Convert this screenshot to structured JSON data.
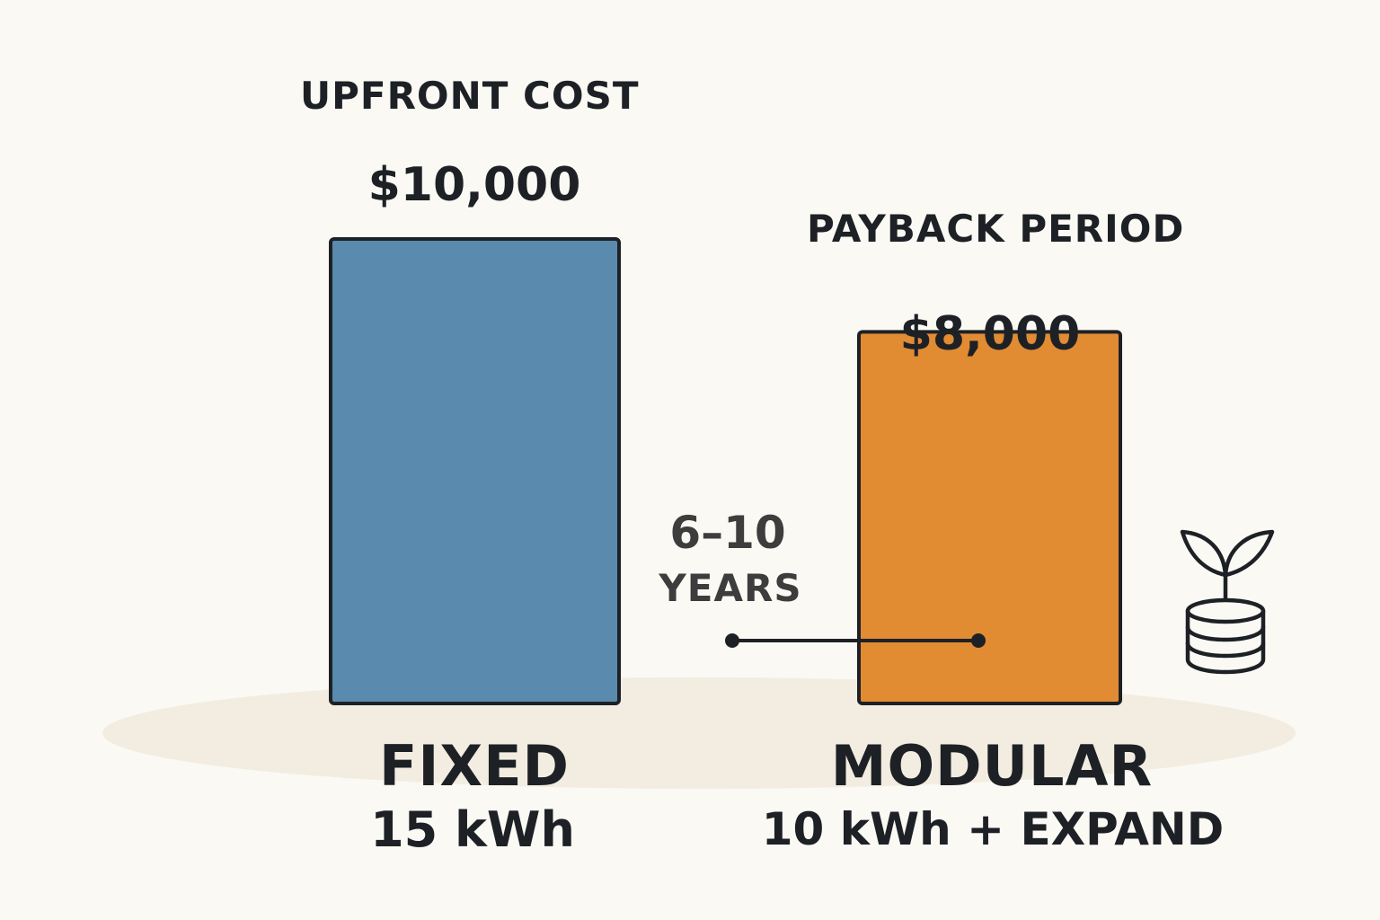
{
  "headings": {
    "upfront": "UPFRONT COST",
    "payback": "PAYBACK PERIOD"
  },
  "payback": {
    "value": "6–10",
    "unit": "YEARS"
  },
  "icons": {
    "growth": "plant-on-coins-icon"
  },
  "colors": {
    "background": "#fbf9f3",
    "ground": "#f3ede1",
    "fixed_bar": "#5a8bae",
    "modular_bar": "#e18b33",
    "outline": "#1d2126"
  },
  "chart_data": {
    "type": "bar",
    "categories": [
      "FIXED",
      "MODULAR"
    ],
    "category_sublabels": [
      "15 kWh",
      "10 kWh + EXPAND"
    ],
    "values": [
      10000,
      8000
    ],
    "value_labels": [
      "$10,000",
      "$8,000"
    ],
    "title": "",
    "xlabel": "",
    "ylabel": "",
    "ylim": [
      0,
      10000
    ],
    "grid": false,
    "axes_visible": false
  }
}
